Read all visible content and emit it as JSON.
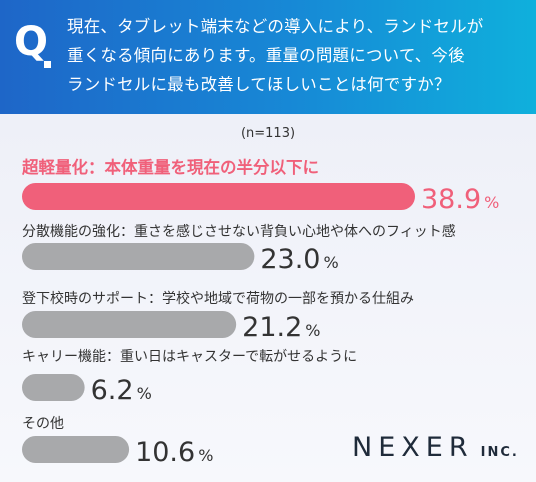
{
  "header": {
    "q_mark": "Q",
    "question": "現在、タブレット端末などの導入により、ランドセルが\n重くなる傾向にあります。重量の問題について、今後\nランドセルに最も改善してほしいことは何ですか？"
  },
  "sample": "(n=113)",
  "colors": {
    "highlight": "#f0607a",
    "bar": "#a8a9ab",
    "text": "#333333"
  },
  "chart_data": {
    "type": "bar",
    "orientation": "horizontal",
    "categories": [
      "超軽量化：本体重量を現在の半分以下に",
      "分散機能の強化：重さを感じさせない背負い心地や体へのフィット感",
      "登下校時のサポート：学校や地域で荷物の一部を預かる仕組み",
      "キャリー機能：重い日はキャスターで転がせるように",
      "その他"
    ],
    "values": [
      38.9,
      23.0,
      21.2,
      6.2,
      10.6
    ],
    "value_labels": [
      "38.9",
      "23.0",
      "21.2",
      "6.2",
      "10.6"
    ],
    "unit": "%",
    "highlight_index": 0
  },
  "logo": {
    "main": "NEXER",
    "sub": "INC."
  }
}
